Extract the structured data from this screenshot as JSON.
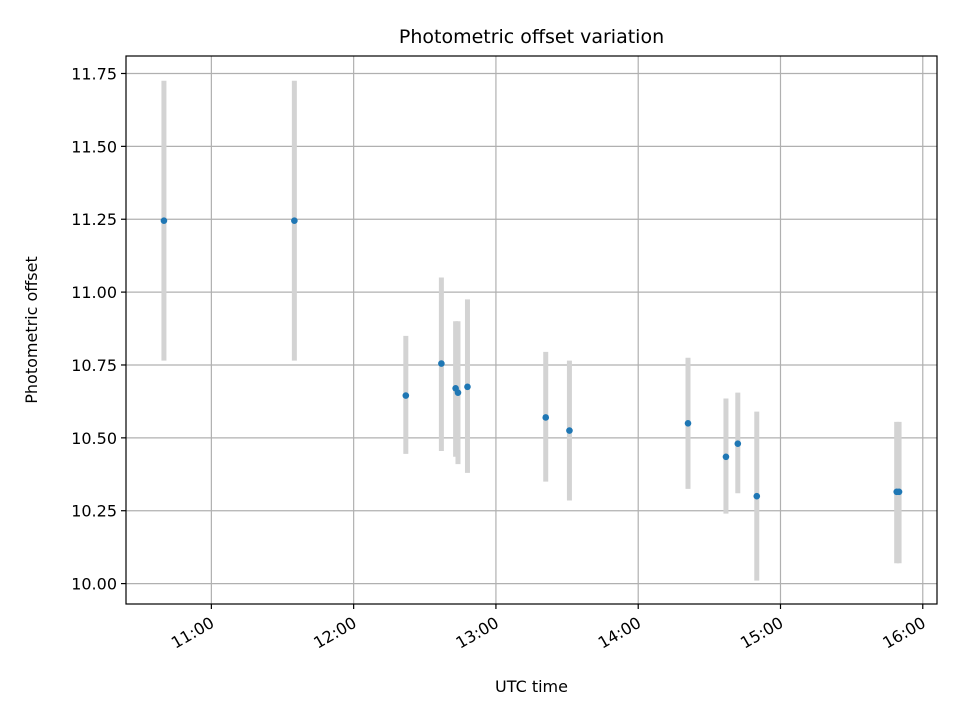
{
  "chart_data": {
    "type": "scatter",
    "title": "Photometric offset variation",
    "xlabel": "UTC time",
    "ylabel": "Photometric offset",
    "x_tick_labels": [
      "11:00",
      "12:00",
      "13:00",
      "14:00",
      "15:00",
      "16:00"
    ],
    "y_tick_labels": [
      "10.00",
      "10.25",
      "10.50",
      "10.75",
      "11.00",
      "11.25",
      "11.50",
      "11.75"
    ],
    "xlim": [
      "10:24",
      "16:06"
    ],
    "ylim": [
      9.93,
      11.81
    ],
    "grid": true,
    "errorbars": true,
    "colors": {
      "marker": "#1f77b4",
      "errorbar": "#d3d3d3",
      "grid": "#b0b0b0"
    },
    "points": [
      {
        "x": "10:40",
        "y": 11.245,
        "y_low": 10.765,
        "y_high": 11.725
      },
      {
        "x": "11:35",
        "y": 11.245,
        "y_low": 10.765,
        "y_high": 11.725
      },
      {
        "x": "12:22",
        "y": 10.645,
        "y_low": 10.445,
        "y_high": 10.85
      },
      {
        "x": "12:37",
        "y": 10.755,
        "y_low": 10.455,
        "y_high": 11.05
      },
      {
        "x": "12:43",
        "y": 10.67,
        "y_low": 10.435,
        "y_high": 10.9
      },
      {
        "x": "12:44",
        "y": 10.655,
        "y_low": 10.41,
        "y_high": 10.9
      },
      {
        "x": "12:48",
        "y": 10.675,
        "y_low": 10.38,
        "y_high": 10.975
      },
      {
        "x": "13:21",
        "y": 10.57,
        "y_low": 10.35,
        "y_high": 10.795
      },
      {
        "x": "13:31",
        "y": 10.525,
        "y_low": 10.285,
        "y_high": 10.765
      },
      {
        "x": "14:21",
        "y": 10.55,
        "y_low": 10.325,
        "y_high": 10.775
      },
      {
        "x": "14:37",
        "y": 10.435,
        "y_low": 10.24,
        "y_high": 10.635
      },
      {
        "x": "14:42",
        "y": 10.48,
        "y_low": 10.31,
        "y_high": 10.655
      },
      {
        "x": "14:50",
        "y": 10.3,
        "y_low": 10.01,
        "y_high": 10.59
      },
      {
        "x": "15:49",
        "y": 10.315,
        "y_low": 10.07,
        "y_high": 10.555
      },
      {
        "x": "15:50",
        "y": 10.315,
        "y_low": 10.07,
        "y_high": 10.555
      }
    ]
  }
}
